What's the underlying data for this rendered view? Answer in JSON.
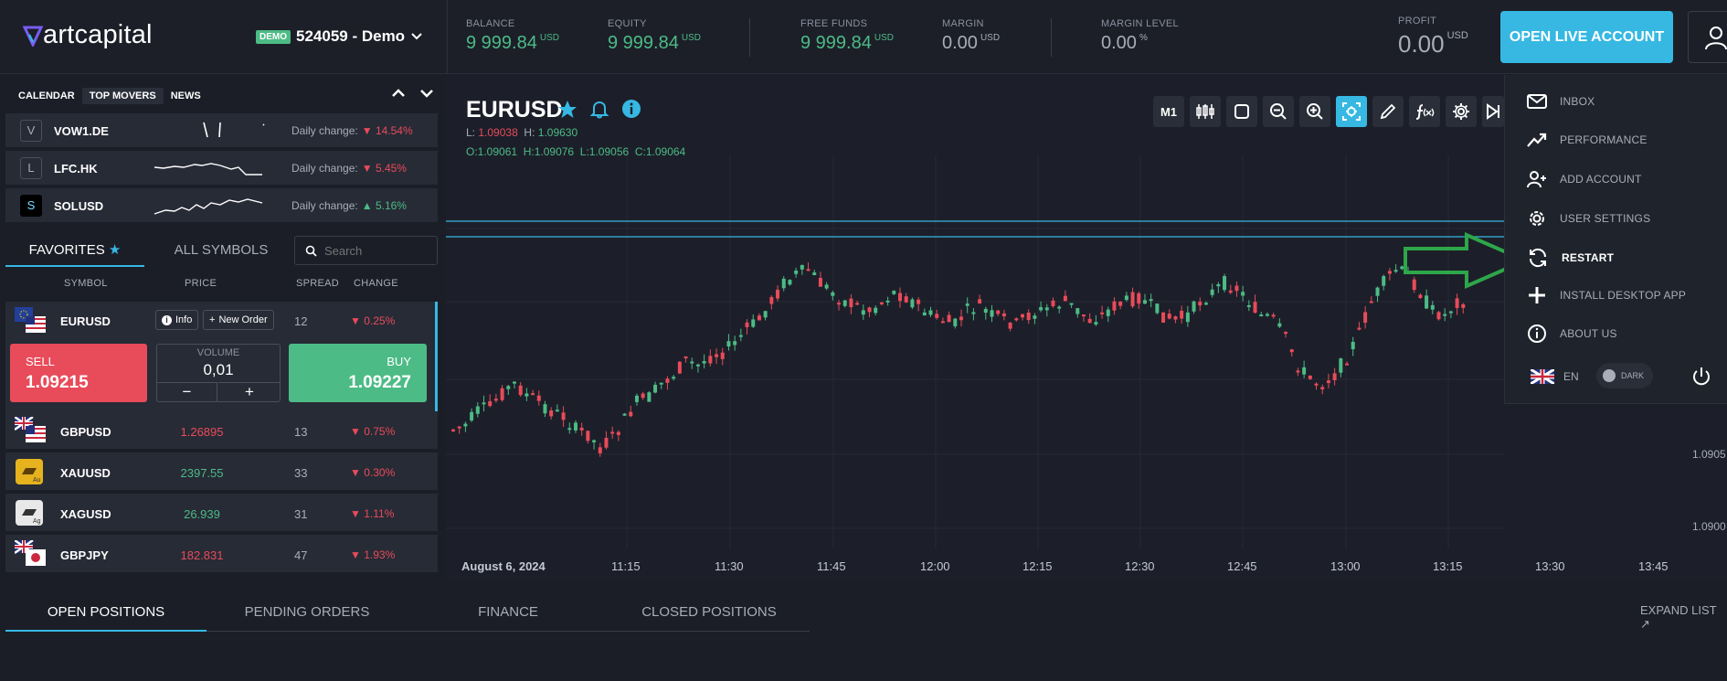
{
  "header": {
    "logo": "artcapital",
    "demo_badge": "DEMO",
    "account": "524059 - Demo",
    "balance": {
      "label": "BALANCE",
      "value": "9 999.84",
      "currency": "USD"
    },
    "equity": {
      "label": "EQUITY",
      "value": "9 999.84",
      "currency": "USD"
    },
    "free_funds": {
      "label": "FREE FUNDS",
      "value": "9 999.84",
      "currency": "USD"
    },
    "margin": {
      "label": "MARGIN",
      "value": "0.00",
      "currency": "USD"
    },
    "margin_level": {
      "label": "MARGIN LEVEL",
      "value": "0.00",
      "currency": "%"
    },
    "profit": {
      "label": "PROFIT",
      "value": "0.00",
      "currency": "USD"
    },
    "open_live": "OPEN LIVE ACCOUNT"
  },
  "left": {
    "tabs": [
      "CALENDAR",
      "TOP MOVERS",
      "NEWS"
    ],
    "movers": [
      {
        "icon": "V",
        "symbol": "VOW1.DE",
        "label": "Daily change:",
        "change": "14.54%"
      },
      {
        "icon": "L",
        "symbol": "LFC.HK",
        "label": "Daily change:",
        "change": "5.45%"
      },
      {
        "icon": "S",
        "symbol": "SOLUSD",
        "label": "Daily change:",
        "change": "5.16%"
      }
    ],
    "fav_tab": "FAVORITES",
    "all_tab": "ALL SYMBOLS",
    "search_placeholder": "Search",
    "columns": [
      "SYMBOL",
      "PRICE",
      "SPREAD",
      "CHANGE"
    ],
    "eurusd": {
      "symbol": "EURUSD",
      "info": "Info",
      "new_order": "New Order",
      "spread": "12",
      "change": "0.25%",
      "sell_label": "SELL",
      "sell_price": "1.09215",
      "volume_label": "VOLUME",
      "volume": "0,01",
      "minus": "−",
      "plus": "+",
      "buy_label": "BUY",
      "buy_price": "1.09227"
    },
    "rows": [
      {
        "symbol": "GBPUSD",
        "price": "1.26895",
        "spread": "13",
        "change": "0.75%"
      },
      {
        "symbol": "XAUUSD",
        "price": "2397.55",
        "spread": "33",
        "change": "0.30%"
      },
      {
        "symbol": "XAGUSD",
        "price": "26.939",
        "spread": "31",
        "change": "1.11%"
      },
      {
        "symbol": "GBPJPY",
        "price": "182.831",
        "spread": "47",
        "change": "1.93%"
      }
    ]
  },
  "chart": {
    "symbol": "EURUSD",
    "l_label": "L:",
    "l_value": "1.09038",
    "h_label": "H:",
    "h_value": "1.09630",
    "ohlc": {
      "o": "O:1.09061",
      "h": "H:1.09076",
      "l": "L:1.09056",
      "c": "C:1.09064"
    },
    "timeframe": "M1",
    "date": "August 6, 2024",
    "times": [
      "11:15",
      "11:30",
      "11:45",
      "12:00",
      "12:15",
      "12:30",
      "12:45",
      "13:00",
      "13:15",
      "13:30",
      "13:45"
    ],
    "yticks": [
      "1.0905",
      "1.0900"
    ]
  },
  "bottom": {
    "tabs": [
      "OPEN POSITIONS",
      "PENDING ORDERS",
      "FINANCE",
      "CLOSED POSITIONS"
    ],
    "expand": "EXPAND LIST"
  },
  "menu": {
    "items": [
      "INBOX",
      "PERFORMANCE",
      "ADD ACCOUNT",
      "USER SETTINGS",
      "RESTART",
      "INSTALL DESKTOP APP",
      "ABOUT US"
    ],
    "lang": "EN",
    "theme": "DARK"
  },
  "colors": {
    "accent": "#36b8e3",
    "buy": "#4dbb86",
    "sell": "#e84b5a",
    "arrow": "#2ea64a"
  }
}
